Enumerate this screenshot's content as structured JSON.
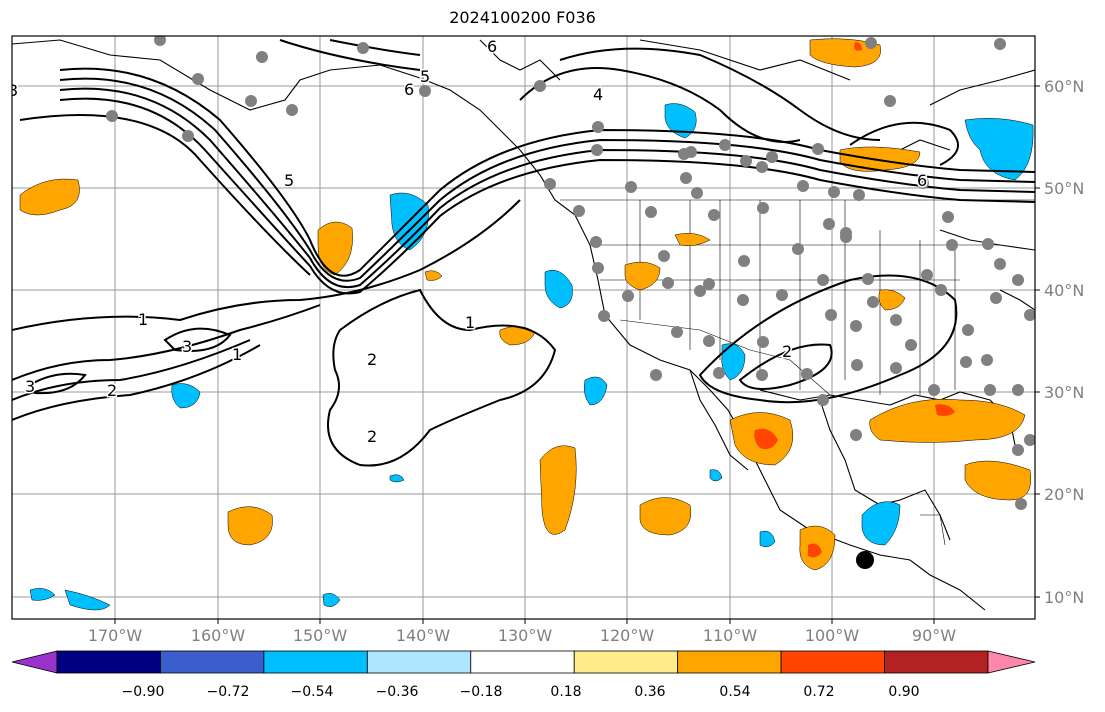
{
  "title": "2024100200 F036",
  "lat_labels": [
    "60°N",
    "50°N",
    "40°N",
    "30°N",
    "20°N",
    "10°N"
  ],
  "lon_labels": [
    "170°W",
    "160°W",
    "150°W",
    "140°W",
    "130°W",
    "120°W",
    "110°W",
    "100°W",
    "90°W"
  ],
  "colorbar": {
    "tick_labels": [
      "−0.90",
      "−0.72",
      "−0.54",
      "−0.36",
      "−0.18",
      "0.18",
      "0.36",
      "0.54",
      "0.72",
      "0.90"
    ],
    "colors": [
      "#9933cc",
      "#000080",
      "#3a5fcd",
      "#00bfff",
      "#aee6ff",
      "#ffffff",
      "#ffec8b",
      "#ffa500",
      "#ff4500",
      "#b22222",
      "#ff88aa"
    ]
  },
  "contour_labels": [
    "1",
    "1",
    "1",
    "2",
    "2",
    "2",
    "2",
    "3",
    "3",
    "3",
    "5",
    "5",
    "6",
    "6",
    "6",
    "4"
  ]
}
